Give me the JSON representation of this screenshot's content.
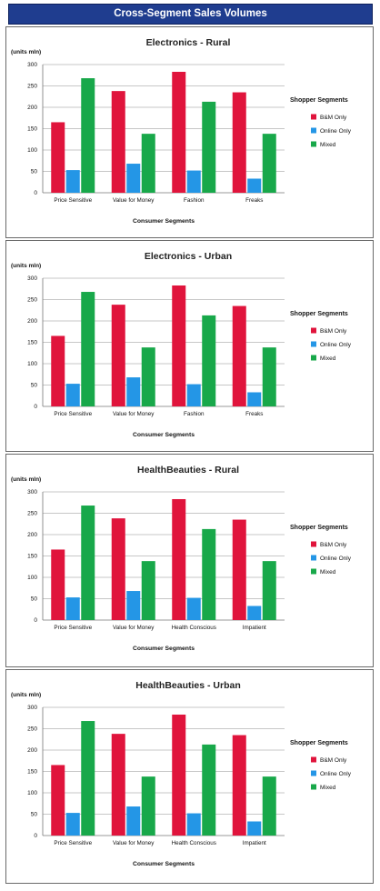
{
  "banner": {
    "title": "Cross-Segment Sales Volumes"
  },
  "colors": {
    "banner": "#1f3d8f",
    "bnm_only": "#e0143c",
    "online_only": "#2496e6",
    "mixed": "#18a84a"
  },
  "chart_data": [
    {
      "type": "bar",
      "title": "Electronics - Rural",
      "ylabel": "(units mln)",
      "xlabel": "Consumer Segments",
      "ylim": [
        0,
        300
      ],
      "yticks": [
        0,
        50,
        100,
        150,
        200,
        250,
        300
      ],
      "grid": true,
      "legend_title": "Shopper Segments",
      "legend_position": "right",
      "categories": [
        "Price Sensitive",
        "Value for Money",
        "Fashion",
        "Freaks"
      ],
      "series": [
        {
          "name": "B&M Only",
          "values": [
            165,
            238,
            283,
            235
          ]
        },
        {
          "name": "Online Only",
          "values": [
            53,
            68,
            52,
            33
          ]
        },
        {
          "name": "Mixed",
          "values": [
            268,
            138,
            213,
            138
          ]
        }
      ]
    },
    {
      "type": "bar",
      "title": "Electronics - Urban",
      "ylabel": "(units mln)",
      "xlabel": "Consumer Segments",
      "ylim": [
        0,
        300
      ],
      "yticks": [
        0,
        50,
        100,
        150,
        200,
        250,
        300
      ],
      "grid": true,
      "legend_title": "Shopper Segments",
      "legend_position": "right",
      "categories": [
        "Price Sensitive",
        "Value for Money",
        "Fashion",
        "Freaks"
      ],
      "series": [
        {
          "name": "B&M Only",
          "values": [
            165,
            238,
            283,
            235
          ]
        },
        {
          "name": "Online Only",
          "values": [
            53,
            68,
            52,
            33
          ]
        },
        {
          "name": "Mixed",
          "values": [
            268,
            138,
            213,
            138
          ]
        }
      ]
    },
    {
      "type": "bar",
      "title": "HealthBeauties - Rural",
      "ylabel": "(units mln)",
      "xlabel": "Consumer Segments",
      "ylim": [
        0,
        300
      ],
      "yticks": [
        0,
        50,
        100,
        150,
        200,
        250,
        300
      ],
      "grid": true,
      "legend_title": "Shopper Segments",
      "legend_position": "right",
      "categories": [
        "Price Sensitive",
        "Value for Money",
        "Health Conscious",
        "Impatient"
      ],
      "series": [
        {
          "name": "B&M Only",
          "values": [
            165,
            238,
            283,
            235
          ]
        },
        {
          "name": "Online Only",
          "values": [
            53,
            68,
            52,
            33
          ]
        },
        {
          "name": "Mixed",
          "values": [
            268,
            138,
            213,
            138
          ]
        }
      ]
    },
    {
      "type": "bar",
      "title": "HealthBeauties - Urban",
      "ylabel": "(units mln)",
      "xlabel": "Consumer Segments",
      "ylim": [
        0,
        300
      ],
      "yticks": [
        0,
        50,
        100,
        150,
        200,
        250,
        300
      ],
      "grid": true,
      "legend_title": "Shopper Segments",
      "legend_position": "right",
      "categories": [
        "Price Sensitive",
        "Value for Money",
        "Health Conscious",
        "Impatient"
      ],
      "series": [
        {
          "name": "B&M Only",
          "values": [
            165,
            238,
            283,
            235
          ]
        },
        {
          "name": "Online Only",
          "values": [
            53,
            68,
            52,
            33
          ]
        },
        {
          "name": "Mixed",
          "values": [
            268,
            138,
            213,
            138
          ]
        }
      ]
    }
  ]
}
